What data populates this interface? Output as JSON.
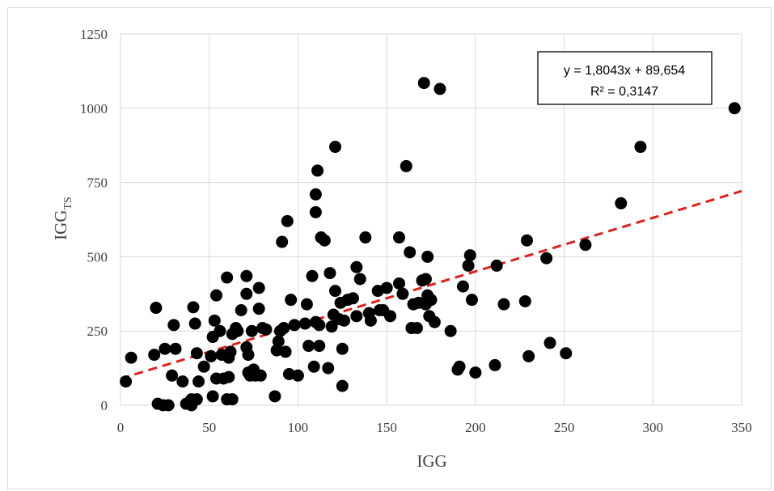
{
  "chart_data": {
    "type": "scatter",
    "xlabel": "IGG",
    "ylabel": {
      "main": "IGG",
      "sub": "TS"
    },
    "xlim": [
      0,
      350
    ],
    "ylim": [
      0,
      1250
    ],
    "xticks": [
      "0",
      "50",
      "100",
      "150",
      "200",
      "250",
      "300",
      "350"
    ],
    "yticks": [
      "0",
      "250",
      "500",
      "750",
      "1000",
      "1250"
    ],
    "grid": "vertical and horizontal major gridlines",
    "marker_color": "#000000",
    "trendline": {
      "type": "linear",
      "slope": 1.8043,
      "intercept": 89.654,
      "color": "#e0201b",
      "style": "dashed",
      "equation": "y = 1,8043x + 89,654",
      "r2": "R² = 0,3147"
    },
    "points": [
      [
        3,
        80
      ],
      [
        6,
        160
      ],
      [
        19,
        170
      ],
      [
        20,
        328
      ],
      [
        21,
        5
      ],
      [
        24,
        0
      ],
      [
        25,
        190
      ],
      [
        27,
        0
      ],
      [
        29,
        100
      ],
      [
        30,
        270
      ],
      [
        31,
        190
      ],
      [
        35,
        80
      ],
      [
        37,
        5
      ],
      [
        40,
        0
      ],
      [
        40,
        20
      ],
      [
        41,
        330
      ],
      [
        42,
        275
      ],
      [
        43,
        175
      ],
      [
        43,
        20
      ],
      [
        44,
        80
      ],
      [
        47,
        130
      ],
      [
        51,
        165
      ],
      [
        52,
        230
      ],
      [
        52,
        30
      ],
      [
        53,
        285
      ],
      [
        54,
        90
      ],
      [
        54,
        370
      ],
      [
        56,
        250
      ],
      [
        57,
        170
      ],
      [
        58,
        90
      ],
      [
        60,
        20
      ],
      [
        60,
        430
      ],
      [
        61,
        160
      ],
      [
        61,
        95
      ],
      [
        62,
        180
      ],
      [
        63,
        20
      ],
      [
        63,
        240
      ],
      [
        65,
        260
      ],
      [
        66,
        250
      ],
      [
        68,
        320
      ],
      [
        71,
        375
      ],
      [
        71,
        435
      ],
      [
        71,
        195
      ],
      [
        72,
        170
      ],
      [
        72,
        110
      ],
      [
        73,
        100
      ],
      [
        74,
        250
      ],
      [
        75,
        120
      ],
      [
        76,
        100
      ],
      [
        78,
        325
      ],
      [
        78,
        395
      ],
      [
        79,
        100
      ],
      [
        80,
        260
      ],
      [
        82,
        255
      ],
      [
        87,
        30
      ],
      [
        88,
        185
      ],
      [
        89,
        215
      ],
      [
        90,
        250
      ],
      [
        91,
        550
      ],
      [
        92,
        260
      ],
      [
        93,
        180
      ],
      [
        94,
        620
      ],
      [
        95,
        105
      ],
      [
        96,
        355
      ],
      [
        98,
        270
      ],
      [
        100,
        100
      ],
      [
        104,
        275
      ],
      [
        105,
        340
      ],
      [
        106,
        200
      ],
      [
        108,
        435
      ],
      [
        109,
        130
      ],
      [
        110,
        710
      ],
      [
        110,
        650
      ],
      [
        110,
        280
      ],
      [
        111,
        790
      ],
      [
        112,
        200
      ],
      [
        112,
        270
      ],
      [
        113,
        565
      ],
      [
        115,
        555
      ],
      [
        117,
        125
      ],
      [
        118,
        445
      ],
      [
        119,
        265
      ],
      [
        120,
        305
      ],
      [
        121,
        870
      ],
      [
        121,
        385
      ],
      [
        123,
        290
      ],
      [
        124,
        345
      ],
      [
        125,
        65
      ],
      [
        125,
        190
      ],
      [
        126,
        285
      ],
      [
        128,
        355
      ],
      [
        131,
        360
      ],
      [
        133,
        465
      ],
      [
        133,
        300
      ],
      [
        135,
        425
      ],
      [
        138,
        565
      ],
      [
        140,
        310
      ],
      [
        141,
        285
      ],
      [
        145,
        385
      ],
      [
        146,
        320
      ],
      [
        148,
        320
      ],
      [
        150,
        395
      ],
      [
        152,
        300
      ],
      [
        157,
        565
      ],
      [
        157,
        410
      ],
      [
        159,
        375
      ],
      [
        161,
        805
      ],
      [
        163,
        515
      ],
      [
        164,
        260
      ],
      [
        165,
        340
      ],
      [
        167,
        260
      ],
      [
        168,
        345
      ],
      [
        170,
        420
      ],
      [
        171,
        1085
      ],
      [
        172,
        425
      ],
      [
        172,
        340
      ],
      [
        173,
        500
      ],
      [
        173,
        370
      ],
      [
        174,
        300
      ],
      [
        175,
        355
      ],
      [
        177,
        280
      ],
      [
        180,
        1065
      ],
      [
        186,
        250
      ],
      [
        190,
        120
      ],
      [
        191,
        130
      ],
      [
        193,
        400
      ],
      [
        196,
        470
      ],
      [
        197,
        505
      ],
      [
        198,
        355
      ],
      [
        200,
        110
      ],
      [
        211,
        135
      ],
      [
        212,
        470
      ],
      [
        216,
        340
      ],
      [
        228,
        350
      ],
      [
        229,
        555
      ],
      [
        230,
        165
      ],
      [
        240,
        495
      ],
      [
        242,
        210
      ],
      [
        251,
        175
      ],
      [
        262,
        540
      ],
      [
        282,
        680
      ],
      [
        293,
        870
      ],
      [
        346,
        1000
      ]
    ]
  }
}
